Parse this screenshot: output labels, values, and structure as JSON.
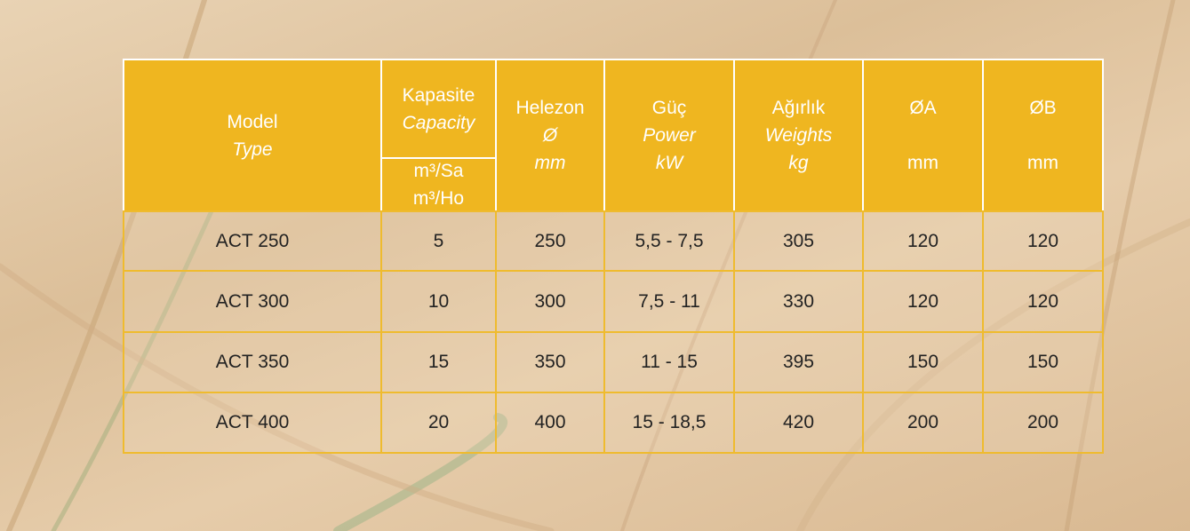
{
  "table": {
    "header": [
      {
        "lines": [
          "Model",
          "Type"
        ]
      },
      {
        "lines": [
          "Kapasite",
          "Capacity"
        ],
        "unit": [
          "m³/Sa",
          "m³/Ho"
        ]
      },
      {
        "lines": [
          "Helezon",
          "Ø",
          "mm"
        ]
      },
      {
        "lines": [
          "Güç",
          "Power",
          "kW"
        ]
      },
      {
        "lines": [
          "Ağırlık",
          "Weights",
          "kg"
        ]
      },
      {
        "lines": [
          "ØA",
          "mm"
        ]
      },
      {
        "lines": [
          "ØB",
          "mm"
        ]
      }
    ],
    "rows": [
      [
        "ACT 250",
        "5",
        "250",
        "5,5 - 7,5",
        "305",
        "120",
        "120"
      ],
      [
        "ACT 300",
        "10",
        "300",
        "7,5 - 11",
        "330",
        "120",
        "120"
      ],
      [
        "ACT 350",
        "15",
        "350",
        "11 - 15",
        "395",
        "150",
        "150"
      ],
      [
        "ACT 400",
        "20",
        "400",
        "15 - 18,5",
        "420",
        "200",
        "200"
      ]
    ]
  }
}
